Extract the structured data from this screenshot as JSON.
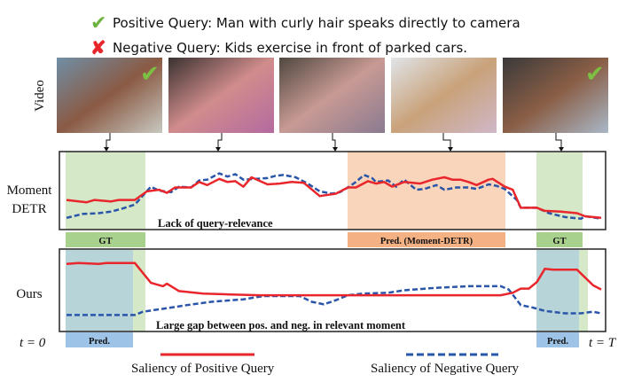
{
  "queries": {
    "positive": {
      "icon": "check-icon",
      "text": "Positive Query: Man with curly hair speaks directly to camera"
    },
    "negative": {
      "icon": "cross-icon",
      "text": "Negative Query: Kids exercise in front of parked cars."
    }
  },
  "video_label": "Video",
  "frames": [
    {
      "check": true
    },
    {
      "check": false
    },
    {
      "check": false
    },
    {
      "check": false
    },
    {
      "check": true
    }
  ],
  "panels": {
    "moment_detr": {
      "label_line1": "Moment",
      "label_line2": "DETR",
      "annotation": "Lack of query-relevance",
      "bars": [
        "GT",
        "Pred. (Moment-DETR)",
        "GT"
      ],
      "positive": [
        [
          0,
          38
        ],
        [
          5,
          35
        ],
        [
          7,
          38
        ],
        [
          11,
          36
        ],
        [
          13,
          38
        ],
        [
          17,
          38
        ],
        [
          20,
          49
        ],
        [
          23,
          51
        ],
        [
          25,
          47
        ],
        [
          27,
          54
        ],
        [
          30,
          54
        ],
        [
          31,
          54
        ],
        [
          33,
          61
        ],
        [
          35,
          57
        ],
        [
          38,
          65
        ],
        [
          40,
          61
        ],
        [
          42,
          62
        ],
        [
          44,
          55
        ],
        [
          46,
          67
        ],
        [
          50,
          58
        ],
        [
          53,
          59
        ],
        [
          56,
          61
        ],
        [
          59,
          60
        ],
        [
          63,
          43
        ],
        [
          67,
          46
        ],
        [
          70,
          54
        ],
        [
          72,
          54
        ],
        [
          75,
          62
        ],
        [
          77,
          59
        ],
        [
          79,
          61
        ],
        [
          81,
          55
        ],
        [
          84,
          61
        ],
        [
          88,
          59
        ],
        [
          91,
          64
        ],
        [
          94,
          67
        ],
        [
          96,
          64
        ],
        [
          98,
          64
        ],
        [
          100,
          61
        ],
        [
          102,
          57
        ],
        [
          105,
          64
        ],
        [
          106,
          65
        ],
        [
          109,
          55
        ],
        [
          111,
          51
        ],
        [
          113,
          28
        ],
        [
          117,
          28
        ],
        [
          119,
          24
        ],
        [
          123,
          23
        ],
        [
          127,
          21
        ],
        [
          129,
          17
        ],
        [
          133,
          15
        ]
      ],
      "negative": [
        [
          0,
          15
        ],
        [
          4,
          20
        ],
        [
          8,
          21
        ],
        [
          11,
          23
        ],
        [
          14,
          27
        ],
        [
          17,
          32
        ],
        [
          21,
          55
        ],
        [
          23,
          50
        ],
        [
          26,
          48
        ],
        [
          28,
          55
        ],
        [
          31,
          54
        ],
        [
          33,
          63
        ],
        [
          35,
          64
        ],
        [
          38,
          72
        ],
        [
          40,
          68
        ],
        [
          42,
          71
        ],
        [
          44,
          64
        ],
        [
          47,
          65
        ],
        [
          50,
          66
        ],
        [
          52,
          69
        ],
        [
          54,
          70
        ],
        [
          57,
          67
        ],
        [
          60,
          59
        ],
        [
          63,
          49
        ],
        [
          66,
          46
        ],
        [
          68,
          48
        ],
        [
          70,
          54
        ],
        [
          72,
          61
        ],
        [
          74,
          70
        ],
        [
          76,
          66
        ],
        [
          77,
          61
        ],
        [
          80,
          63
        ],
        [
          82,
          55
        ],
        [
          84,
          64
        ],
        [
          87,
          51
        ],
        [
          89,
          52
        ],
        [
          92,
          57
        ],
        [
          94,
          51
        ],
        [
          97,
          54
        ],
        [
          100,
          54
        ],
        [
          102,
          52
        ],
        [
          105,
          58
        ],
        [
          107,
          56
        ],
        [
          109,
          52
        ],
        [
          112,
          38
        ],
        [
          113,
          28
        ],
        [
          117,
          28
        ],
        [
          120,
          21
        ],
        [
          124,
          16
        ],
        [
          128,
          14
        ],
        [
          129,
          17
        ],
        [
          133,
          14
        ]
      ]
    },
    "ours": {
      "label": "Ours",
      "annotation": "Large gap between pos. and neg. in relevant moment",
      "bars": [
        "Pred.",
        "Pred."
      ],
      "positive": [
        [
          0,
          82
        ],
        [
          3,
          83
        ],
        [
          8,
          82
        ],
        [
          10,
          83
        ],
        [
          17,
          83
        ],
        [
          21,
          59
        ],
        [
          24,
          55
        ],
        [
          25,
          58
        ],
        [
          28,
          49
        ],
        [
          34,
          46
        ],
        [
          40,
          45
        ],
        [
          48,
          44
        ],
        [
          72,
          44
        ],
        [
          108,
          44
        ],
        [
          111,
          47
        ],
        [
          113,
          52
        ],
        [
          115,
          52
        ],
        [
          117,
          60
        ],
        [
          119,
          76
        ],
        [
          121,
          75
        ],
        [
          127,
          75
        ],
        [
          131,
          56
        ],
        [
          133,
          51
        ]
      ],
      "negative": [
        [
          0,
          20
        ],
        [
          17,
          20
        ],
        [
          19,
          24
        ],
        [
          26,
          29
        ],
        [
          30,
          32
        ],
        [
          36,
          36
        ],
        [
          44,
          39
        ],
        [
          49,
          43
        ],
        [
          58,
          43
        ],
        [
          61,
          36
        ],
        [
          64,
          33
        ],
        [
          67,
          38
        ],
        [
          70,
          44
        ],
        [
          74,
          46
        ],
        [
          80,
          47
        ],
        [
          84,
          50
        ],
        [
          92,
          53
        ],
        [
          100,
          55
        ],
        [
          108,
          55
        ],
        [
          110,
          51
        ],
        [
          113,
          32
        ],
        [
          116,
          29
        ],
        [
          119,
          25
        ],
        [
          124,
          22
        ],
        [
          128,
          22
        ],
        [
          131,
          24
        ],
        [
          133,
          22
        ]
      ]
    }
  },
  "time_start": "t = 0",
  "time_end": "t = T",
  "legend": {
    "positive": "Saliency of Positive Query",
    "negative": "Saliency of Negative Query"
  },
  "colors": {
    "positive": "#e8262b",
    "negative": "#2a55a8",
    "gt": "#a9d18e",
    "pred_detr": "#f4b183",
    "pred_ours": "#9dc3e6"
  }
}
